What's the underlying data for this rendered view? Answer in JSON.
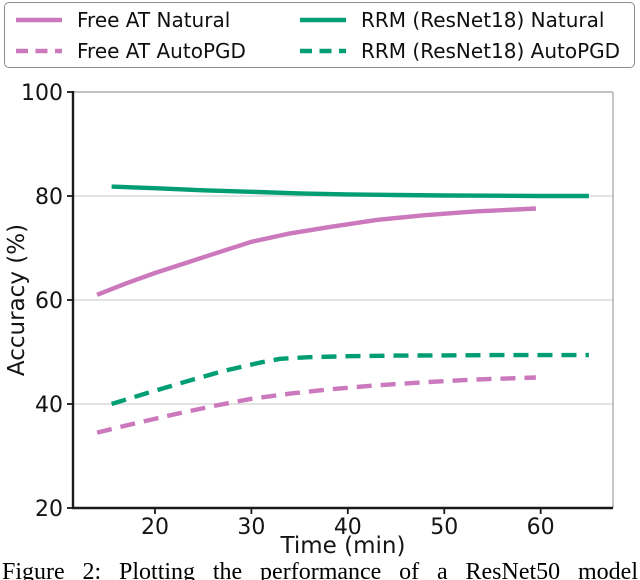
{
  "figure": {
    "caption": "Figure 2: Plotting the performance of a ResNet50 model"
  },
  "colors": {
    "pink": "#CC78BC",
    "green": "#029E73",
    "grid": "#DADADA",
    "spine_dark": "#1a1a1a",
    "spine_light": "#ADADAD"
  },
  "chart_data": {
    "type": "line",
    "title": "",
    "xlabel": "Time (min)",
    "ylabel": "Accuracy (%)",
    "xlim": [
      11.5,
      67.5
    ],
    "ylim": [
      20,
      100
    ],
    "xticks": [
      20,
      30,
      40,
      50,
      60
    ],
    "yticks": [
      20,
      40,
      60,
      80,
      100
    ],
    "grid": "horizontal",
    "legend_position": "top",
    "legend_ncol": 2,
    "series": [
      {
        "name": "Free AT Natural",
        "color": "#CC78BC",
        "style": "solid",
        "x": [
          14,
          17,
          20,
          23,
          26,
          30,
          34,
          38,
          43,
          48,
          53,
          59.5
        ],
        "y": [
          61,
          63.2,
          65.2,
          67,
          68.8,
          71.2,
          72.8,
          74,
          75.4,
          76.3,
          77,
          77.6
        ]
      },
      {
        "name": "Free AT AutoPGD",
        "color": "#CC78BC",
        "style": "dashed",
        "x": [
          14,
          18,
          22,
          26,
          30,
          34,
          38,
          43,
          48,
          53,
          59.5
        ],
        "y": [
          34.5,
          36.3,
          38,
          39.6,
          41,
          42,
          42.8,
          43.6,
          44.2,
          44.7,
          45.1
        ]
      },
      {
        "name": "RRM (ResNet18) Natural",
        "color": "#029E73",
        "style": "solid",
        "x": [
          15.5,
          20,
          25,
          30,
          35,
          40,
          45,
          50,
          55,
          60,
          65
        ],
        "y": [
          81.8,
          81.5,
          81.1,
          80.8,
          80.5,
          80.3,
          80.2,
          80.1,
          80.05,
          80,
          80
        ]
      },
      {
        "name": "RRM (ResNet18) AutoPGD",
        "color": "#029E73",
        "style": "dashed",
        "x": [
          15.5,
          19,
          23,
          27,
          31,
          33,
          36,
          40,
          45,
          50,
          55,
          60,
          65
        ],
        "y": [
          40,
          42,
          44.2,
          46.3,
          48,
          48.7,
          49,
          49.2,
          49.3,
          49.35,
          49.4,
          49.4,
          49.4
        ]
      }
    ]
  }
}
